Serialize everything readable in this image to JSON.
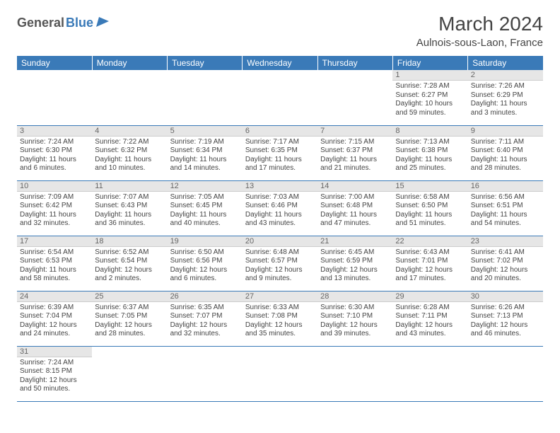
{
  "logo": {
    "general": "General",
    "blue": "Blue"
  },
  "title": "March 2024",
  "location": "Aulnois-sous-Laon, France",
  "colors": {
    "header_bg": "#3a7ab8",
    "header_text": "#ffffff",
    "daynum_bg": "#e6e6e6",
    "border": "#3a7ab8"
  },
  "weekdays": [
    "Sunday",
    "Monday",
    "Tuesday",
    "Wednesday",
    "Thursday",
    "Friday",
    "Saturday"
  ],
  "weeks": [
    [
      null,
      null,
      null,
      null,
      null,
      {
        "n": "1",
        "sr": "7:28 AM",
        "ss": "6:27 PM",
        "dl": "10 hours and 59 minutes."
      },
      {
        "n": "2",
        "sr": "7:26 AM",
        "ss": "6:29 PM",
        "dl": "11 hours and 3 minutes."
      }
    ],
    [
      {
        "n": "3",
        "sr": "7:24 AM",
        "ss": "6:30 PM",
        "dl": "11 hours and 6 minutes."
      },
      {
        "n": "4",
        "sr": "7:22 AM",
        "ss": "6:32 PM",
        "dl": "11 hours and 10 minutes."
      },
      {
        "n": "5",
        "sr": "7:19 AM",
        "ss": "6:34 PM",
        "dl": "11 hours and 14 minutes."
      },
      {
        "n": "6",
        "sr": "7:17 AM",
        "ss": "6:35 PM",
        "dl": "11 hours and 17 minutes."
      },
      {
        "n": "7",
        "sr": "7:15 AM",
        "ss": "6:37 PM",
        "dl": "11 hours and 21 minutes."
      },
      {
        "n": "8",
        "sr": "7:13 AM",
        "ss": "6:38 PM",
        "dl": "11 hours and 25 minutes."
      },
      {
        "n": "9",
        "sr": "7:11 AM",
        "ss": "6:40 PM",
        "dl": "11 hours and 28 minutes."
      }
    ],
    [
      {
        "n": "10",
        "sr": "7:09 AM",
        "ss": "6:42 PM",
        "dl": "11 hours and 32 minutes."
      },
      {
        "n": "11",
        "sr": "7:07 AM",
        "ss": "6:43 PM",
        "dl": "11 hours and 36 minutes."
      },
      {
        "n": "12",
        "sr": "7:05 AM",
        "ss": "6:45 PM",
        "dl": "11 hours and 40 minutes."
      },
      {
        "n": "13",
        "sr": "7:03 AM",
        "ss": "6:46 PM",
        "dl": "11 hours and 43 minutes."
      },
      {
        "n": "14",
        "sr": "7:00 AM",
        "ss": "6:48 PM",
        "dl": "11 hours and 47 minutes."
      },
      {
        "n": "15",
        "sr": "6:58 AM",
        "ss": "6:50 PM",
        "dl": "11 hours and 51 minutes."
      },
      {
        "n": "16",
        "sr": "6:56 AM",
        "ss": "6:51 PM",
        "dl": "11 hours and 54 minutes."
      }
    ],
    [
      {
        "n": "17",
        "sr": "6:54 AM",
        "ss": "6:53 PM",
        "dl": "11 hours and 58 minutes."
      },
      {
        "n": "18",
        "sr": "6:52 AM",
        "ss": "6:54 PM",
        "dl": "12 hours and 2 minutes."
      },
      {
        "n": "19",
        "sr": "6:50 AM",
        "ss": "6:56 PM",
        "dl": "12 hours and 6 minutes."
      },
      {
        "n": "20",
        "sr": "6:48 AM",
        "ss": "6:57 PM",
        "dl": "12 hours and 9 minutes."
      },
      {
        "n": "21",
        "sr": "6:45 AM",
        "ss": "6:59 PM",
        "dl": "12 hours and 13 minutes."
      },
      {
        "n": "22",
        "sr": "6:43 AM",
        "ss": "7:01 PM",
        "dl": "12 hours and 17 minutes."
      },
      {
        "n": "23",
        "sr": "6:41 AM",
        "ss": "7:02 PM",
        "dl": "12 hours and 20 minutes."
      }
    ],
    [
      {
        "n": "24",
        "sr": "6:39 AM",
        "ss": "7:04 PM",
        "dl": "12 hours and 24 minutes."
      },
      {
        "n": "25",
        "sr": "6:37 AM",
        "ss": "7:05 PM",
        "dl": "12 hours and 28 minutes."
      },
      {
        "n": "26",
        "sr": "6:35 AM",
        "ss": "7:07 PM",
        "dl": "12 hours and 32 minutes."
      },
      {
        "n": "27",
        "sr": "6:33 AM",
        "ss": "7:08 PM",
        "dl": "12 hours and 35 minutes."
      },
      {
        "n": "28",
        "sr": "6:30 AM",
        "ss": "7:10 PM",
        "dl": "12 hours and 39 minutes."
      },
      {
        "n": "29",
        "sr": "6:28 AM",
        "ss": "7:11 PM",
        "dl": "12 hours and 43 minutes."
      },
      {
        "n": "30",
        "sr": "6:26 AM",
        "ss": "7:13 PM",
        "dl": "12 hours and 46 minutes."
      }
    ],
    [
      {
        "n": "31",
        "sr": "7:24 AM",
        "ss": "8:15 PM",
        "dl": "12 hours and 50 minutes."
      },
      null,
      null,
      null,
      null,
      null,
      null
    ]
  ],
  "labels": {
    "sunrise": "Sunrise:",
    "sunset": "Sunset:",
    "daylight": "Daylight:"
  }
}
